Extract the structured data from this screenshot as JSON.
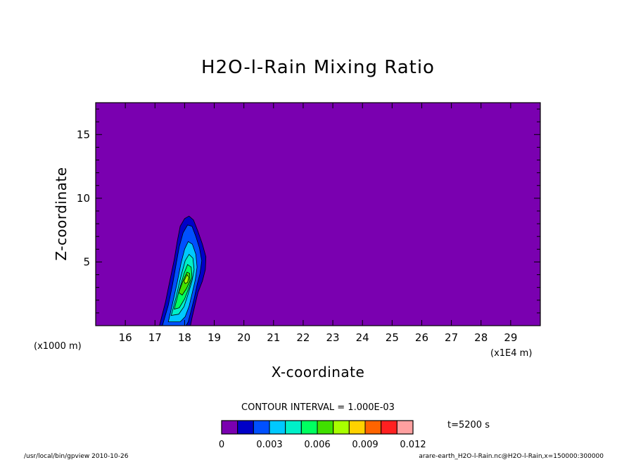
{
  "chart_data": {
    "type": "contour",
    "title": "H2O-l-Rain Mixing Ratio",
    "xlabel": "X-coordinate",
    "ylabel": "Z-coordinate",
    "x_unit_left": "(x1000 m)",
    "x_unit_right": "(x1E4 m)",
    "xlim": [
      15,
      30
    ],
    "ylim": [
      0,
      17.5
    ],
    "x_ticks": [
      16,
      17,
      18,
      19,
      20,
      21,
      22,
      23,
      24,
      25,
      26,
      27,
      28,
      29
    ],
    "y_ticks": [
      5,
      10,
      15
    ],
    "contour_interval_label": "CONTOUR INTERVAL = 1.000E-03",
    "time_label": "t=5200 s",
    "levels": [
      0,
      0.001,
      0.002,
      0.003,
      0.004,
      0.005,
      0.006,
      0.007,
      0.008,
      0.009,
      0.01,
      0.011,
      0.012
    ],
    "colorbar_colors": [
      "#7a00b0",
      "#0000c8",
      "#0050ff",
      "#00c8ff",
      "#00f0c8",
      "#00ff60",
      "#40e000",
      "#a8ff00",
      "#ffd200",
      "#ff6400",
      "#ff2020",
      "#ffa0a0"
    ],
    "colorbar_tick_labels": [
      "0",
      "0.003",
      "0.006",
      "0.009",
      "0.012"
    ],
    "colorbar_tick_levels": [
      0,
      0.003,
      0.006,
      0.009,
      0.012
    ],
    "background_value": 0,
    "contours": [
      {
        "level": 0.001,
        "points": [
          [
            17.15,
            0
          ],
          [
            17.35,
            1.8
          ],
          [
            17.5,
            3.5
          ],
          [
            17.65,
            5.2
          ],
          [
            17.75,
            6.6
          ],
          [
            17.85,
            7.8
          ],
          [
            18.0,
            8.4
          ],
          [
            18.15,
            8.6
          ],
          [
            18.3,
            8.3
          ],
          [
            18.45,
            7.4
          ],
          [
            18.6,
            6.4
          ],
          [
            18.72,
            5.4
          ],
          [
            18.7,
            4.4
          ],
          [
            18.6,
            3.5
          ],
          [
            18.45,
            2.6
          ],
          [
            18.35,
            1.6
          ],
          [
            18.25,
            0.6
          ],
          [
            18.2,
            0
          ]
        ]
      },
      {
        "level": 0.002,
        "points": [
          [
            17.25,
            0
          ],
          [
            17.45,
            1.6
          ],
          [
            17.6,
            3.3
          ],
          [
            17.72,
            4.9
          ],
          [
            17.82,
            6.2
          ],
          [
            17.95,
            7.3
          ],
          [
            18.1,
            7.9
          ],
          [
            18.25,
            7.8
          ],
          [
            18.38,
            7.0
          ],
          [
            18.5,
            6.1
          ],
          [
            18.58,
            5.1
          ],
          [
            18.52,
            4.1
          ],
          [
            18.42,
            3.2
          ],
          [
            18.33,
            2.2
          ],
          [
            18.22,
            1.2
          ],
          [
            18.12,
            0.3
          ],
          [
            18.05,
            0
          ]
        ]
      },
      {
        "level": 0.003,
        "points": [
          [
            17.45,
            0.3
          ],
          [
            17.6,
            1.8
          ],
          [
            17.75,
            3.4
          ],
          [
            17.88,
            4.9
          ],
          [
            18.0,
            6.0
          ],
          [
            18.12,
            6.6
          ],
          [
            18.26,
            6.4
          ],
          [
            18.38,
            5.6
          ],
          [
            18.42,
            4.6
          ],
          [
            18.36,
            3.6
          ],
          [
            18.26,
            2.6
          ],
          [
            18.15,
            1.5
          ],
          [
            18.02,
            0.7
          ],
          [
            17.85,
            0.3
          ]
        ]
      },
      {
        "level": 0.004,
        "points": [
          [
            17.55,
            0.8
          ],
          [
            17.72,
            2.3
          ],
          [
            17.88,
            3.9
          ],
          [
            18.02,
            5.1
          ],
          [
            18.15,
            5.6
          ],
          [
            18.28,
            5.3
          ],
          [
            18.32,
            4.4
          ],
          [
            18.25,
            3.5
          ],
          [
            18.12,
            2.5
          ],
          [
            17.98,
            1.5
          ],
          [
            17.8,
            0.9
          ]
        ]
      },
      {
        "level": 0.005,
        "points": [
          [
            17.65,
            1.3
          ],
          [
            17.82,
            2.8
          ],
          [
            17.98,
            4.1
          ],
          [
            18.1,
            4.8
          ],
          [
            18.22,
            4.6
          ],
          [
            18.25,
            3.8
          ],
          [
            18.15,
            3.0
          ],
          [
            18.0,
            2.1
          ],
          [
            17.82,
            1.4
          ]
        ]
      },
      {
        "level": 0.006,
        "points": [
          [
            17.8,
            2.6
          ],
          [
            17.96,
            3.6
          ],
          [
            18.08,
            4.2
          ],
          [
            18.17,
            4.1
          ],
          [
            18.18,
            3.5
          ],
          [
            18.06,
            2.9
          ],
          [
            17.92,
            2.4
          ]
        ]
      },
      {
        "level": 0.007,
        "points": [
          [
            17.98,
            3.5
          ],
          [
            18.08,
            4.0
          ],
          [
            18.14,
            3.8
          ],
          [
            18.1,
            3.4
          ],
          [
            18.02,
            3.3
          ]
        ]
      }
    ]
  },
  "footer": {
    "left": "/usr/local/bin/gpview  2010-10-26",
    "right": "arare-earth_H2O-l-Rain.nc@H2O-l-Rain,x=150000:300000"
  }
}
